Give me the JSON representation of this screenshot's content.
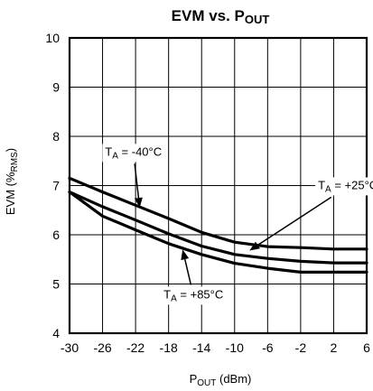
{
  "chart_data": {
    "type": "line",
    "title": {
      "main": "EVM vs. P",
      "sub": "OUT"
    },
    "xlabel": {
      "main": "P",
      "sub": "OUT",
      "rest": " (dBm)"
    },
    "ylabel": {
      "main": "EVM (%",
      "sub": "RMS",
      "rest": ")"
    },
    "xlim": [
      -30,
      6
    ],
    "ylim": [
      4,
      10
    ],
    "xticks": [
      -30,
      -26,
      -22,
      -18,
      -14,
      -10,
      -6,
      -2,
      2,
      6
    ],
    "yticks": [
      4,
      5,
      6,
      7,
      8,
      9,
      10
    ],
    "x_grid_lines": [
      -30,
      -26,
      -22,
      -18,
      -14,
      -10,
      -6,
      -2,
      2,
      6
    ],
    "y_grid_lines": [
      4,
      5,
      6,
      7,
      8,
      9,
      10
    ],
    "grid": true,
    "series": [
      {
        "name": "-40°C",
        "x": [
          -30,
          -26,
          -22,
          -18,
          -14,
          -10,
          -6,
          -2,
          2,
          6
        ],
        "y": [
          7.15,
          6.87,
          6.6,
          6.33,
          6.05,
          5.85,
          5.76,
          5.74,
          5.71,
          5.71
        ]
      },
      {
        "name": "+25°C",
        "x": [
          -30,
          -26,
          -22,
          -18,
          -14,
          -10,
          -6,
          -2,
          2,
          6
        ],
        "y": [
          6.87,
          6.57,
          6.3,
          6.02,
          5.77,
          5.6,
          5.52,
          5.46,
          5.43,
          5.43
        ]
      },
      {
        "name": "+85°C",
        "x": [
          -30,
          -26,
          -22,
          -18,
          -14,
          -10,
          -6,
          -2,
          2,
          6
        ],
        "y": [
          6.87,
          6.38,
          6.1,
          5.82,
          5.6,
          5.42,
          5.32,
          5.24,
          5.24,
          5.24
        ]
      }
    ],
    "annotations": [
      {
        "series": 0,
        "prefix": "T",
        "sub": "A",
        "text": " = -40°C",
        "label_x": -25.7,
        "label_y": 7.7,
        "arrow_x": -21.5,
        "arrow_y": 6.55
      },
      {
        "series": 1,
        "prefix": "T",
        "sub": "A",
        "text": " = +25°C",
        "label_x": 0.1,
        "label_y": 7.02,
        "arrow_x": -8.2,
        "arrow_y": 5.68
      },
      {
        "series": 2,
        "prefix": "T",
        "sub": "A",
        "text": " = +85°C",
        "label_x": -18.6,
        "label_y": 4.8,
        "arrow_x": -16.3,
        "arrow_y": 5.7
      }
    ]
  }
}
